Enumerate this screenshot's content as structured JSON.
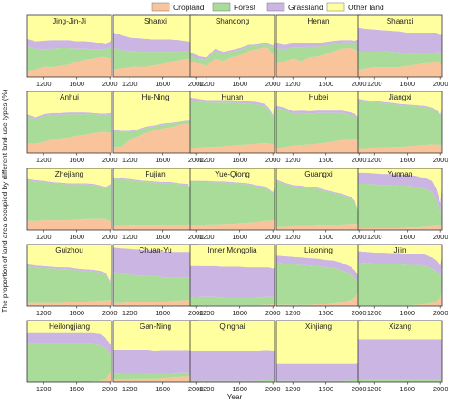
{
  "chart_data": {
    "type": "area",
    "stacked": true,
    "normalized": true,
    "xlabel": "Year",
    "ylabel": "The proportion of land area occupied by different land-use types (%)",
    "xlim": [
      1000,
      2020
    ],
    "ylim": [
      0,
      100
    ],
    "x_ticks": [
      1200,
      1600,
      2000
    ],
    "series_names": [
      "Cropland",
      "Forest",
      "Grassland",
      "Other land"
    ],
    "colors": {
      "Cropland": "#f9c49b",
      "Forest": "#a9dc98",
      "Grassland": "#cbb5e3",
      "Other land": "#ffff9f"
    },
    "legend_position": "top-center",
    "x": [
      1000,
      1100,
      1200,
      1300,
      1400,
      1500,
      1600,
      1700,
      1800,
      1900,
      1950,
      2000,
      2020
    ],
    "panels": [
      {
        "name": "Jing-Jin-Ji",
        "cropland": [
          10,
          12,
          17,
          16,
          18,
          20,
          24,
          28,
          30,
          33,
          32,
          30,
          32
        ],
        "forest": [
          40,
          34,
          28,
          30,
          29,
          27,
          22,
          18,
          15,
          12,
          13,
          18,
          18
        ],
        "grassland": [
          12,
          12,
          14,
          14,
          13,
          13,
          12,
          12,
          12,
          10,
          8,
          10,
          12
        ]
      },
      {
        "name": "Shanxi",
        "cropland": [
          12,
          14,
          16,
          17,
          17,
          19,
          21,
          25,
          27,
          30,
          30,
          29,
          27
        ],
        "forest": [
          35,
          30,
          26,
          24,
          24,
          22,
          20,
          16,
          14,
          12,
          12,
          14,
          14
        ],
        "grassland": [
          25,
          24,
          22,
          22,
          21,
          20,
          20,
          20,
          19,
          16,
          15,
          22,
          25
        ]
      },
      {
        "name": "Shandong",
        "cropland": [
          25,
          22,
          18,
          30,
          26,
          32,
          35,
          42,
          45,
          48,
          46,
          35,
          45
        ],
        "forest": [
          10,
          8,
          10,
          12,
          12,
          9,
          9,
          7,
          6,
          5,
          6,
          12,
          10
        ],
        "grassland": [
          5,
          4,
          4,
          4,
          3,
          3,
          3,
          3,
          2,
          2,
          2,
          4,
          5
        ]
      },
      {
        "name": "Henan",
        "cropland": [
          22,
          25,
          30,
          26,
          32,
          33,
          37,
          42,
          46,
          47,
          45,
          40,
          48
        ],
        "forest": [
          25,
          20,
          18,
          22,
          17,
          16,
          14,
          12,
          10,
          9,
          10,
          16,
          12
        ],
        "grassland": [
          8,
          7,
          7,
          7,
          6,
          6,
          6,
          5,
          4,
          4,
          4,
          6,
          6
        ]
      },
      {
        "name": "Shaanxi",
        "cropland": [
          12,
          14,
          16,
          16,
          16,
          16,
          18,
          20,
          22,
          23,
          24,
          22,
          18
        ],
        "forest": [
          30,
          28,
          26,
          26,
          25,
          24,
          20,
          18,
          17,
          16,
          16,
          18,
          20
        ],
        "grassland": [
          38,
          36,
          35,
          34,
          34,
          34,
          34,
          34,
          33,
          33,
          32,
          28,
          32
        ]
      },
      {
        "name": "Anhui",
        "cropland": [
          15,
          15,
          18,
          22,
          24,
          25,
          28,
          30,
          32,
          34,
          34,
          33,
          32
        ],
        "forest": [
          45,
          40,
          42,
          40,
          38,
          38,
          35,
          33,
          31,
          28,
          28,
          29,
          30
        ],
        "grassland": [
          3,
          3,
          3,
          3,
          3,
          3,
          3,
          3,
          2,
          2,
          2,
          3,
          3
        ]
      },
      {
        "name": "Hu-Ning",
        "cropland": [
          10,
          10,
          22,
          27,
          33,
          37,
          40,
          42,
          46,
          48,
          47,
          44,
          48
        ],
        "forest": [
          26,
          24,
          12,
          10,
          8,
          6,
          6,
          5,
          4,
          4,
          4,
          5,
          5
        ],
        "grassland": [
          2,
          2,
          2,
          2,
          2,
          2,
          2,
          2,
          1,
          1,
          1,
          2,
          2
        ]
      },
      {
        "name": "Hunan",
        "cropland": [
          8,
          9,
          10,
          10,
          11,
          12,
          13,
          14,
          15,
          16,
          16,
          14,
          14
        ],
        "forest": [
          78,
          75,
          72,
          72,
          71,
          70,
          68,
          66,
          64,
          60,
          54,
          44,
          66
        ],
        "grassland": [
          4,
          4,
          4,
          4,
          4,
          4,
          4,
          4,
          4,
          4,
          4,
          4,
          4
        ]
      },
      {
        "name": "Hubei",
        "cropland": [
          8,
          10,
          12,
          13,
          14,
          15,
          17,
          19,
          21,
          22,
          22,
          22,
          22
        ],
        "forest": [
          65,
          60,
          52,
          52,
          50,
          50,
          48,
          46,
          44,
          40,
          38,
          30,
          44
        ],
        "grassland": [
          4,
          4,
          4,
          4,
          4,
          4,
          4,
          4,
          4,
          4,
          4,
          4,
          4
        ]
      },
      {
        "name": "Jiangxi",
        "cropland": [
          8,
          8,
          9,
          9,
          10,
          10,
          11,
          12,
          13,
          14,
          14,
          13,
          13
        ],
        "forest": [
          78,
          76,
          74,
          72,
          70,
          68,
          66,
          64,
          62,
          58,
          54,
          48,
          58
        ],
        "grassland": [
          2,
          2,
          2,
          2,
          2,
          2,
          2,
          2,
          2,
          2,
          2,
          2,
          2
        ]
      },
      {
        "name": "Zhejiang",
        "cropland": [
          15,
          15,
          16,
          16,
          16,
          16,
          17,
          18,
          18,
          18,
          18,
          14,
          13
        ],
        "forest": [
          66,
          64,
          62,
          60,
          59,
          58,
          57,
          56,
          55,
          52,
          50,
          58,
          64
        ],
        "grassland": [
          2,
          2,
          2,
          2,
          2,
          2,
          2,
          2,
          2,
          2,
          2,
          2,
          2
        ]
      },
      {
        "name": "Fujian",
        "cropland": [
          6,
          6,
          7,
          7,
          7,
          7,
          7,
          8,
          8,
          9,
          9,
          8,
          8
        ],
        "forest": [
          78,
          76,
          74,
          72,
          71,
          70,
          69,
          68,
          66,
          64,
          55,
          30,
          66
        ],
        "grassland": [
          2,
          2,
          2,
          2,
          2,
          2,
          2,
          2,
          2,
          2,
          2,
          2,
          2
        ]
      },
      {
        "name": "Yue-Qiong",
        "cropland": [
          8,
          8,
          9,
          9,
          10,
          10,
          11,
          12,
          13,
          15,
          15,
          16,
          16
        ],
        "forest": [
          70,
          70,
          69,
          68,
          67,
          66,
          64,
          62,
          58,
          54,
          50,
          44,
          54
        ],
        "grassland": [
          2,
          2,
          2,
          2,
          2,
          2,
          2,
          2,
          2,
          2,
          2,
          2,
          2
        ]
      },
      {
        "name": "Guangxi",
        "cropland": [
          5,
          5,
          6,
          6,
          6,
          7,
          7,
          8,
          9,
          10,
          10,
          10,
          10
        ],
        "forest": [
          75,
          70,
          65,
          64,
          62,
          60,
          56,
          52,
          48,
          42,
          36,
          14,
          56
        ],
        "grassland": [
          2,
          2,
          2,
          2,
          2,
          2,
          2,
          2,
          2,
          2,
          2,
          2,
          2
        ]
      },
      {
        "name": "Yunnan",
        "cropland": [
          3,
          3,
          3,
          3,
          3,
          3,
          4,
          4,
          5,
          6,
          7,
          8,
          8
        ],
        "forest": [
          72,
          72,
          71,
          70,
          70,
          69,
          68,
          66,
          62,
          56,
          42,
          18,
          48
        ],
        "grassland": [
          18,
          18,
          18,
          18,
          18,
          18,
          18,
          18,
          18,
          18,
          18,
          18,
          18
        ]
      },
      {
        "name": "Guizhou",
        "cropland": [
          5,
          5,
          5,
          5,
          5,
          6,
          6,
          7,
          8,
          9,
          9,
          10,
          10
        ],
        "forest": [
          60,
          58,
          57,
          56,
          55,
          54,
          52,
          50,
          48,
          45,
          42,
          28,
          54
        ],
        "grassland": [
          3,
          3,
          3,
          3,
          3,
          3,
          3,
          3,
          3,
          3,
          3,
          3,
          3
        ]
      },
      {
        "name": "Chuan-Yu",
        "cropland": [
          5,
          5,
          6,
          6,
          6,
          7,
          7,
          8,
          9,
          10,
          10,
          10,
          10
        ],
        "forest": [
          50,
          48,
          45,
          44,
          43,
          42,
          40,
          38,
          37,
          36,
          36,
          12,
          36
        ],
        "grassland": [
          40,
          41,
          42,
          42,
          42,
          42,
          42,
          42,
          42,
          42,
          42,
          42,
          42
        ]
      },
      {
        "name": "Inner Mongolia",
        "cropland": [
          1,
          1,
          1,
          1,
          1,
          1,
          1,
          1,
          1,
          2,
          2,
          3,
          3
        ],
        "forest": [
          14,
          14,
          14,
          14,
          13,
          13,
          13,
          13,
          13,
          13,
          13,
          12,
          12
        ],
        "grassland": [
          50,
          50,
          50,
          50,
          50,
          50,
          50,
          49,
          49,
          48,
          48,
          46,
          48
        ]
      },
      {
        "name": "Liaoning",
        "cropland": [
          2,
          2,
          2,
          2,
          2,
          3,
          3,
          4,
          6,
          10,
          14,
          24,
          24
        ],
        "forest": [
          68,
          67,
          66,
          65,
          64,
          62,
          60,
          58,
          52,
          42,
          32,
          12,
          36
        ],
        "grassland": [
          12,
          12,
          12,
          12,
          12,
          12,
          12,
          12,
          12,
          12,
          12,
          12,
          12
        ]
      },
      {
        "name": "Jilin",
        "cropland": [
          1,
          1,
          1,
          1,
          1,
          1,
          1,
          2,
          3,
          5,
          8,
          14,
          26
        ],
        "forest": [
          70,
          69,
          68,
          68,
          67,
          67,
          66,
          65,
          63,
          56,
          48,
          34,
          40
        ],
        "grassland": [
          18,
          18,
          18,
          18,
          18,
          18,
          18,
          18,
          18,
          18,
          18,
          18,
          18
        ]
      },
      {
        "name": "Heilongjiang",
        "cropland": [
          0,
          0,
          0,
          0,
          0,
          0,
          0,
          0,
          1,
          2,
          5,
          15,
          20
        ],
        "forest": [
          62,
          62,
          62,
          62,
          62,
          62,
          62,
          62,
          61,
          58,
          50,
          30,
          30
        ],
        "grassland": [
          18,
          18,
          18,
          18,
          18,
          18,
          18,
          18,
          18,
          18,
          17,
          16,
          16
        ]
      },
      {
        "name": "Gan-Ning",
        "cropland": [
          5,
          5,
          6,
          6,
          6,
          6,
          7,
          8,
          9,
          10,
          11,
          12,
          14
        ],
        "forest": [
          10,
          9,
          8,
          8,
          8,
          7,
          7,
          6,
          6,
          5,
          5,
          5,
          5
        ],
        "grassland": [
          38,
          38,
          38,
          38,
          38,
          37,
          37,
          37,
          36,
          36,
          35,
          34,
          34
        ]
      },
      {
        "name": "Qinghai",
        "cropland": [
          0,
          0,
          0,
          0,
          0,
          0,
          0,
          0,
          0,
          1,
          1,
          1,
          1
        ],
        "forest": [
          2,
          2,
          2,
          2,
          2,
          2,
          2,
          2,
          2,
          2,
          2,
          2,
          2
        ],
        "grassland": [
          48,
          48,
          48,
          48,
          48,
          48,
          48,
          48,
          48,
          48,
          48,
          47,
          47
        ]
      },
      {
        "name": "Xinjiang",
        "cropland": [
          0,
          0,
          0,
          0,
          0,
          0,
          0,
          0,
          0,
          1,
          1,
          2,
          2
        ],
        "forest": [
          2,
          2,
          2,
          2,
          2,
          2,
          2,
          2,
          2,
          2,
          2,
          2,
          2
        ],
        "grassland": [
          28,
          28,
          28,
          28,
          28,
          28,
          28,
          28,
          28,
          27,
          27,
          27,
          27
        ]
      },
      {
        "name": "Xizang",
        "cropland": [
          0,
          0,
          0,
          0,
          0,
          0,
          0,
          0,
          0,
          0,
          0,
          0,
          0
        ],
        "forest": [
          5,
          5,
          5,
          5,
          5,
          5,
          5,
          5,
          5,
          5,
          5,
          5,
          5
        ],
        "grassland": [
          65,
          65,
          65,
          65,
          65,
          65,
          65,
          65,
          65,
          65,
          65,
          65,
          65
        ]
      }
    ]
  }
}
